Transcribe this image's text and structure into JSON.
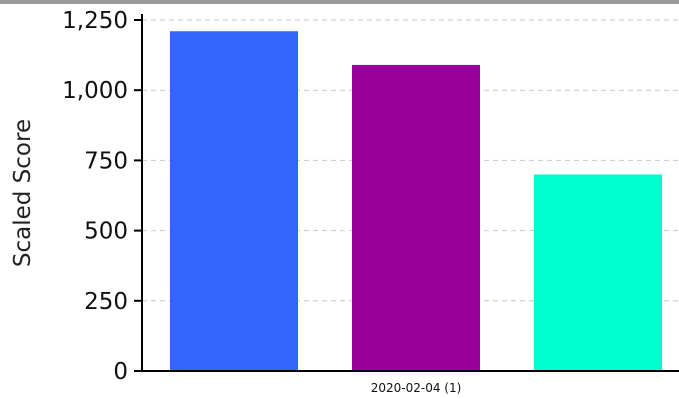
{
  "chart_data": {
    "type": "bar",
    "categories": [
      "2020-02-04 (1)"
    ],
    "series": [
      {
        "values": [
          1210
        ],
        "color": "#3366ff"
      },
      {
        "values": [
          1090
        ],
        "color": "#990099"
      },
      {
        "values": [
          700
        ],
        "color": "#00ffcc"
      }
    ],
    "title": "",
    "xlabel": "",
    "ylabel": "Scaled Score",
    "ylim": [
      0,
      1250
    ],
    "yticks": [
      0,
      250,
      500,
      750,
      1000,
      1250
    ],
    "ytick_labels": [
      "0",
      "250",
      "500",
      "750",
      "1,000",
      "1,250"
    ],
    "grid": true,
    "grid_style": "dashed",
    "grid_color": "#c8c8c8",
    "axis_color": "#000000"
  }
}
